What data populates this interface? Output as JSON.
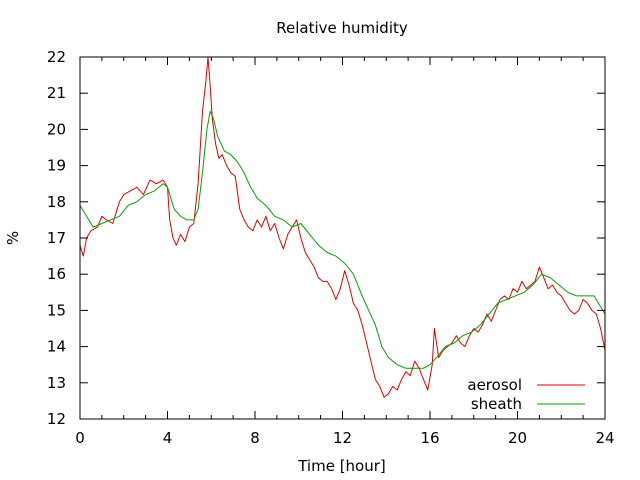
{
  "chart_data": {
    "type": "line",
    "title": "Relative humidity",
    "xlabel": "Time [hour]",
    "ylabel": "%",
    "xlim": [
      0,
      24
    ],
    "ylim": [
      12,
      22
    ],
    "xticks": [
      0,
      4,
      8,
      12,
      16,
      20,
      24
    ],
    "yticks": [
      12,
      13,
      14,
      15,
      16,
      17,
      18,
      19,
      20,
      21,
      22
    ],
    "grid": false,
    "legend_position": "bottom-right",
    "series": [
      {
        "name": "aerosol",
        "color": "#dd0000",
        "x": [
          0,
          0.15,
          0.3,
          0.5,
          0.8,
          1.0,
          1.2,
          1.5,
          1.8,
          2.0,
          2.3,
          2.6,
          2.9,
          3.2,
          3.5,
          3.8,
          4.0,
          4.1,
          4.25,
          4.4,
          4.6,
          4.8,
          5.0,
          5.2,
          5.4,
          5.6,
          5.75,
          5.85,
          5.95,
          6.05,
          6.2,
          6.35,
          6.5,
          6.7,
          6.9,
          7.1,
          7.3,
          7.5,
          7.7,
          7.9,
          8.1,
          8.3,
          8.5,
          8.7,
          8.9,
          9.1,
          9.3,
          9.5,
          9.7,
          9.9,
          10.1,
          10.3,
          10.5,
          10.7,
          10.9,
          11.1,
          11.3,
          11.5,
          11.7,
          11.9,
          12.1,
          12.3,
          12.5,
          12.7,
          12.9,
          13.1,
          13.3,
          13.5,
          13.7,
          13.9,
          14.1,
          14.3,
          14.5,
          14.7,
          14.9,
          15.1,
          15.3,
          15.5,
          15.7,
          15.9,
          16.1,
          16.2,
          16.4,
          16.6,
          16.8,
          17.0,
          17.2,
          17.4,
          17.6,
          17.8,
          18.0,
          18.2,
          18.4,
          18.6,
          18.8,
          19.0,
          19.2,
          19.4,
          19.6,
          19.8,
          20.0,
          20.2,
          20.4,
          20.6,
          20.8,
          21.0,
          21.2,
          21.4,
          21.6,
          21.8,
          22.0,
          22.2,
          22.4,
          22.6,
          22.8,
          23.0,
          23.2,
          23.4,
          23.6,
          23.8,
          24.0
        ],
        "y": [
          16.8,
          16.5,
          17.0,
          17.2,
          17.3,
          17.6,
          17.5,
          17.4,
          18.0,
          18.2,
          18.3,
          18.4,
          18.2,
          18.6,
          18.5,
          18.6,
          18.4,
          17.5,
          17.0,
          16.8,
          17.1,
          16.9,
          17.3,
          17.4,
          18.5,
          20.5,
          21.3,
          22.0,
          21.2,
          20.3,
          19.6,
          19.2,
          19.3,
          19.0,
          18.8,
          18.7,
          17.8,
          17.5,
          17.3,
          17.2,
          17.5,
          17.3,
          17.6,
          17.2,
          17.4,
          17.0,
          16.7,
          17.1,
          17.3,
          17.5,
          17.0,
          16.6,
          16.4,
          16.2,
          15.9,
          15.8,
          15.8,
          15.6,
          15.3,
          15.6,
          16.1,
          15.7,
          15.2,
          15.0,
          14.6,
          14.1,
          13.6,
          13.1,
          12.9,
          12.6,
          12.7,
          12.9,
          12.8,
          13.1,
          13.3,
          13.2,
          13.6,
          13.4,
          13.1,
          12.8,
          13.5,
          14.5,
          13.7,
          13.9,
          14.0,
          14.1,
          14.3,
          14.1,
          14.0,
          14.3,
          14.5,
          14.4,
          14.6,
          14.9,
          14.7,
          15.0,
          15.3,
          15.4,
          15.3,
          15.6,
          15.5,
          15.8,
          15.6,
          15.7,
          15.8,
          16.2,
          15.9,
          15.6,
          15.7,
          15.5,
          15.4,
          15.2,
          15.0,
          14.9,
          15.0,
          15.3,
          15.2,
          15.0,
          14.9,
          14.5,
          13.9
        ]
      },
      {
        "name": "sheath",
        "color": "#00a000",
        "x": [
          0,
          0.3,
          0.6,
          1.0,
          1.4,
          1.8,
          2.2,
          2.6,
          3.0,
          3.4,
          3.8,
          4.0,
          4.3,
          4.6,
          4.9,
          5.2,
          5.4,
          5.6,
          5.8,
          5.95,
          6.1,
          6.3,
          6.6,
          6.9,
          7.2,
          7.5,
          7.8,
          8.1,
          8.5,
          8.9,
          9.3,
          9.7,
          10.1,
          10.5,
          10.9,
          11.3,
          11.7,
          12.1,
          12.5,
          12.9,
          13.2,
          13.5,
          13.8,
          14.1,
          14.5,
          14.9,
          15.3,
          15.7,
          16.0,
          16.3,
          16.7,
          17.1,
          17.5,
          17.9,
          18.3,
          18.7,
          19.1,
          19.5,
          19.9,
          20.3,
          20.7,
          21.1,
          21.5,
          21.9,
          22.3,
          22.7,
          23.1,
          23.5,
          23.8,
          24.0
        ],
        "y": [
          17.9,
          17.6,
          17.3,
          17.4,
          17.5,
          17.6,
          17.9,
          18.0,
          18.2,
          18.3,
          18.5,
          18.4,
          17.8,
          17.6,
          17.5,
          17.5,
          17.8,
          18.8,
          20.0,
          20.5,
          20.3,
          19.8,
          19.4,
          19.3,
          19.1,
          18.8,
          18.4,
          18.1,
          17.9,
          17.6,
          17.5,
          17.3,
          17.4,
          17.1,
          16.8,
          16.6,
          16.5,
          16.3,
          16.0,
          15.4,
          15.0,
          14.6,
          14.0,
          13.7,
          13.5,
          13.4,
          13.4,
          13.4,
          13.5,
          13.7,
          14.0,
          14.1,
          14.3,
          14.4,
          14.6,
          14.9,
          15.2,
          15.3,
          15.4,
          15.5,
          15.7,
          16.0,
          15.9,
          15.7,
          15.5,
          15.4,
          15.4,
          15.4,
          15.1,
          14.9
        ]
      }
    ]
  }
}
